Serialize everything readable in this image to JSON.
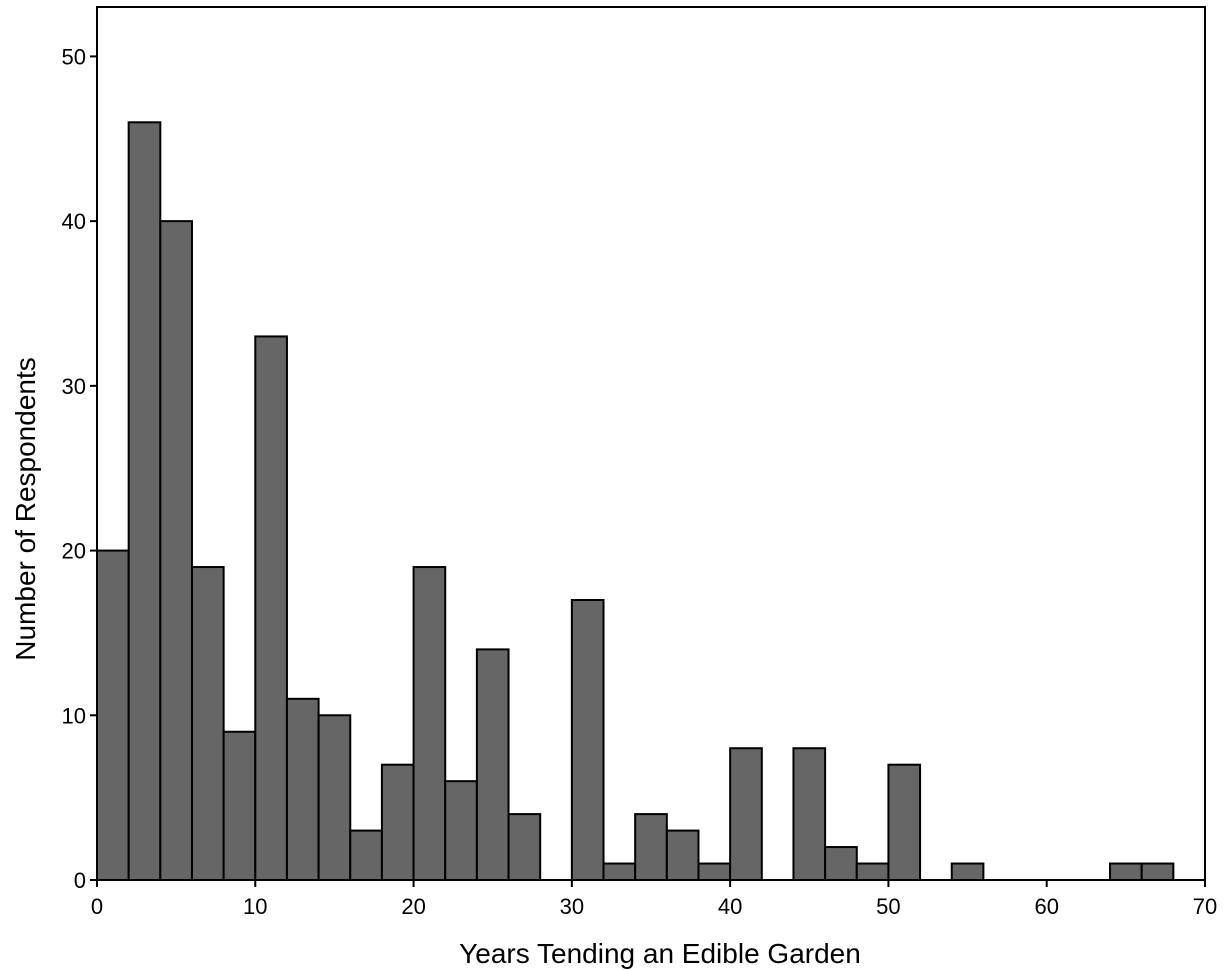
{
  "chart_data": {
    "type": "bar",
    "title": "",
    "xlabel": "Years Tending an Edible Garden",
    "ylabel": "Number of Respondents",
    "xlim": [
      0,
      70
    ],
    "ylim": [
      0,
      53
    ],
    "bin_width": 2,
    "x_ticks": [
      0,
      10,
      20,
      30,
      40,
      50,
      60,
      70
    ],
    "y_ticks": [
      0,
      10,
      20,
      30,
      40,
      50
    ],
    "grid": false,
    "legend": "none",
    "bar_color": "#666666",
    "bar_edge_color": "#000000",
    "bins": [
      {
        "x0": 0,
        "x1": 2,
        "count": 20
      },
      {
        "x0": 2,
        "x1": 4,
        "count": 46
      },
      {
        "x0": 4,
        "x1": 6,
        "count": 40
      },
      {
        "x0": 6,
        "x1": 8,
        "count": 19
      },
      {
        "x0": 8,
        "x1": 10,
        "count": 9
      },
      {
        "x0": 10,
        "x1": 12,
        "count": 33
      },
      {
        "x0": 12,
        "x1": 14,
        "count": 11
      },
      {
        "x0": 14,
        "x1": 16,
        "count": 10
      },
      {
        "x0": 16,
        "x1": 18,
        "count": 3
      },
      {
        "x0": 18,
        "x1": 20,
        "count": 7
      },
      {
        "x0": 20,
        "x1": 22,
        "count": 19
      },
      {
        "x0": 22,
        "x1": 24,
        "count": 6
      },
      {
        "x0": 24,
        "x1": 26,
        "count": 14
      },
      {
        "x0": 26,
        "x1": 28,
        "count": 4
      },
      {
        "x0": 28,
        "x1": 30,
        "count": 0
      },
      {
        "x0": 30,
        "x1": 32,
        "count": 17
      },
      {
        "x0": 32,
        "x1": 34,
        "count": 1
      },
      {
        "x0": 34,
        "x1": 36,
        "count": 4
      },
      {
        "x0": 36,
        "x1": 38,
        "count": 3
      },
      {
        "x0": 38,
        "x1": 40,
        "count": 1
      },
      {
        "x0": 40,
        "x1": 42,
        "count": 8
      },
      {
        "x0": 42,
        "x1": 44,
        "count": 0
      },
      {
        "x0": 44,
        "x1": 46,
        "count": 8
      },
      {
        "x0": 46,
        "x1": 48,
        "count": 2
      },
      {
        "x0": 48,
        "x1": 50,
        "count": 1
      },
      {
        "x0": 50,
        "x1": 52,
        "count": 7
      },
      {
        "x0": 52,
        "x1": 54,
        "count": 0
      },
      {
        "x0": 54,
        "x1": 56,
        "count": 1
      },
      {
        "x0": 56,
        "x1": 58,
        "count": 0
      },
      {
        "x0": 58,
        "x1": 60,
        "count": 0
      },
      {
        "x0": 60,
        "x1": 62,
        "count": 0
      },
      {
        "x0": 62,
        "x1": 64,
        "count": 0
      },
      {
        "x0": 64,
        "x1": 66,
        "count": 1
      },
      {
        "x0": 66,
        "x1": 68,
        "count": 1
      }
    ]
  }
}
